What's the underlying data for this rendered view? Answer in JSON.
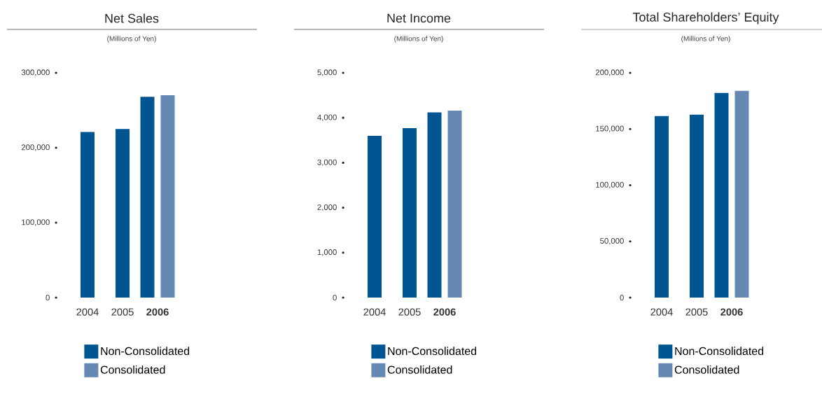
{
  "chart_data": [
    {
      "type": "bar",
      "title": "Net Sales",
      "subtitle": "(Millions of Yen)",
      "categories": [
        "2004",
        "2005",
        "**2006**"
      ],
      "series": [
        {
          "name": "Non-Consolidated",
          "color": "#005592",
          "values": [
            221000,
            225000,
            268000
          ]
        },
        {
          "name": "Consolidated",
          "color": "#6689b4",
          "values": [
            null,
            null,
            270000
          ]
        }
      ],
      "ylim": [
        0,
        300000
      ],
      "yticks": [
        0,
        {
          "value": 100000,
          "label": "100,000"
        },
        {
          "value": 200000,
          "label": "200,000"
        },
        {
          "value": 300000,
          "label": "300,000"
        }
      ],
      "legend": "bottom"
    },
    {
      "type": "bar",
      "title": "Net Income",
      "subtitle": "(Millions of Yen)",
      "categories": [
        "2004",
        "2005",
        "**2006**"
      ],
      "series": [
        {
          "name": "Non-Consolidated",
          "color": "#005592",
          "values": [
            3600,
            3770,
            4120
          ]
        },
        {
          "name": "Consolidated",
          "color": "#6689b4",
          "values": [
            null,
            null,
            4160
          ]
        }
      ],
      "ylim": [
        0,
        5000
      ],
      "yticks": [
        0,
        {
          "value": 1000,
          "label": "1,000"
        },
        {
          "value": 2000,
          "label": "2,000"
        },
        {
          "value": 3000,
          "label": "3,000"
        },
        {
          "value": 4000,
          "label": "4,000"
        },
        {
          "value": 5000,
          "label": "5,000"
        }
      ],
      "legend": "bottom"
    },
    {
      "type": "bar",
      "title": "Total Shareholders’ Equity",
      "subtitle": "(Millions of Yen)",
      "categories": [
        "2004",
        "2005",
        "**2006**"
      ],
      "series": [
        {
          "name": "Non-Consolidated",
          "color": "#005592",
          "values": [
            161500,
            162700,
            182100
          ]
        },
        {
          "name": "Consolidated",
          "color": "#6689b4",
          "values": [
            null,
            null,
            184000
          ]
        }
      ],
      "ylim": [
        0,
        200000
      ],
      "yticks": [
        0,
        {
          "value": 50000,
          "label": "50,000"
        },
        {
          "value": 100000,
          "label": "100,000"
        },
        {
          "value": 150000,
          "label": "150,000"
        },
        {
          "value": 200000,
          "label": "200,000"
        }
      ],
      "legend": "bottom"
    }
  ]
}
